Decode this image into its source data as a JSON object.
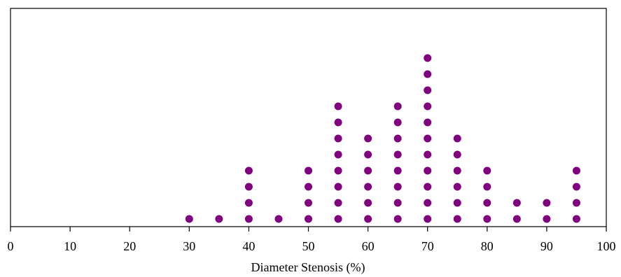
{
  "colors": {
    "dot": "#800080",
    "axis": "#000000",
    "background": "#ffffff"
  },
  "chart_data": {
    "type": "scatter",
    "subtype": "dot-plot",
    "title": "",
    "xlabel": "Diameter Stenosis (%)",
    "ylabel": "",
    "xlim": [
      0,
      100
    ],
    "x_ticks": [
      0,
      10,
      20,
      30,
      40,
      50,
      60,
      70,
      80,
      90,
      100
    ],
    "grid": false,
    "legend": "none",
    "series": [
      {
        "x": [
          30,
          35,
          40,
          45,
          50,
          55,
          60,
          65,
          70,
          75,
          80,
          85,
          90,
          95
        ],
        "counts": [
          1,
          1,
          4,
          1,
          4,
          8,
          6,
          8,
          11,
          6,
          4,
          2,
          2,
          4
        ]
      }
    ]
  }
}
